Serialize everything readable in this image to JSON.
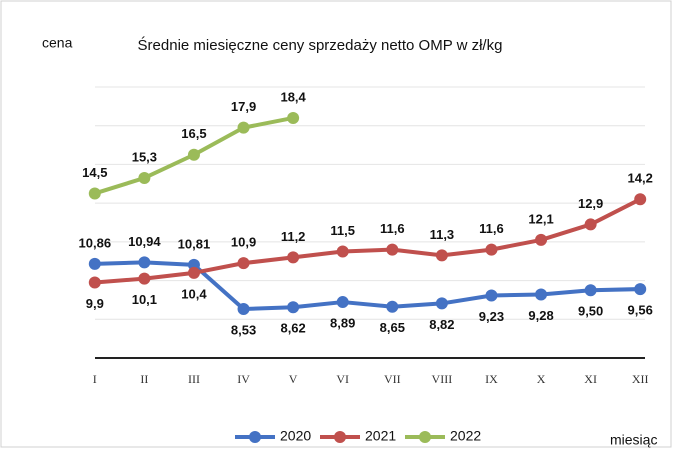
{
  "chart_data": {
    "type": "line",
    "title": "Średnie miesięczne ceny sprzedaży netto OMP w zł/kg",
    "y_label": "cena",
    "x_label": "miesiąc",
    "categories": [
      "I",
      "II",
      "III",
      "IV",
      "V",
      "VI",
      "VII",
      "VIII",
      "IX",
      "X",
      "XI",
      "XII"
    ],
    "ylim": [
      6,
      20
    ],
    "yticks": [
      6,
      8,
      10,
      12,
      14,
      16,
      18,
      20
    ],
    "grid": true,
    "legend": "bottom",
    "series": [
      {
        "name": "2020",
        "color": "#4472c4",
        "values": [
          10.86,
          10.94,
          10.81,
          8.53,
          8.62,
          8.89,
          8.65,
          8.82,
          9.23,
          9.28,
          9.5,
          9.56
        ],
        "value_labels": [
          "10,86",
          "10,94",
          "10,81",
          "8,53",
          "8,62",
          "8,89",
          "8,65",
          "8,82",
          "9,23",
          "9,28",
          "9,50",
          "9,56"
        ]
      },
      {
        "name": "2021",
        "color": "#c0504d",
        "values": [
          9.9,
          10.1,
          10.4,
          10.9,
          11.2,
          11.5,
          11.6,
          11.3,
          11.6,
          12.1,
          12.9,
          14.2
        ],
        "value_labels": [
          "9,9",
          "10,1",
          "10,4",
          "10,9",
          "11,2",
          "11,5",
          "11,6",
          "11,3",
          "11,6",
          "12,1",
          "12,9",
          "14,2"
        ]
      },
      {
        "name": "2022",
        "color": "#9bbb59",
        "values": [
          14.5,
          15.3,
          16.5,
          17.9,
          18.4,
          null,
          null,
          null,
          null,
          null,
          null,
          null
        ],
        "value_labels": [
          "14,5",
          "15,3",
          "16,5",
          "17,9",
          "18,4",
          null,
          null,
          null,
          null,
          null,
          null,
          null
        ]
      }
    ]
  }
}
